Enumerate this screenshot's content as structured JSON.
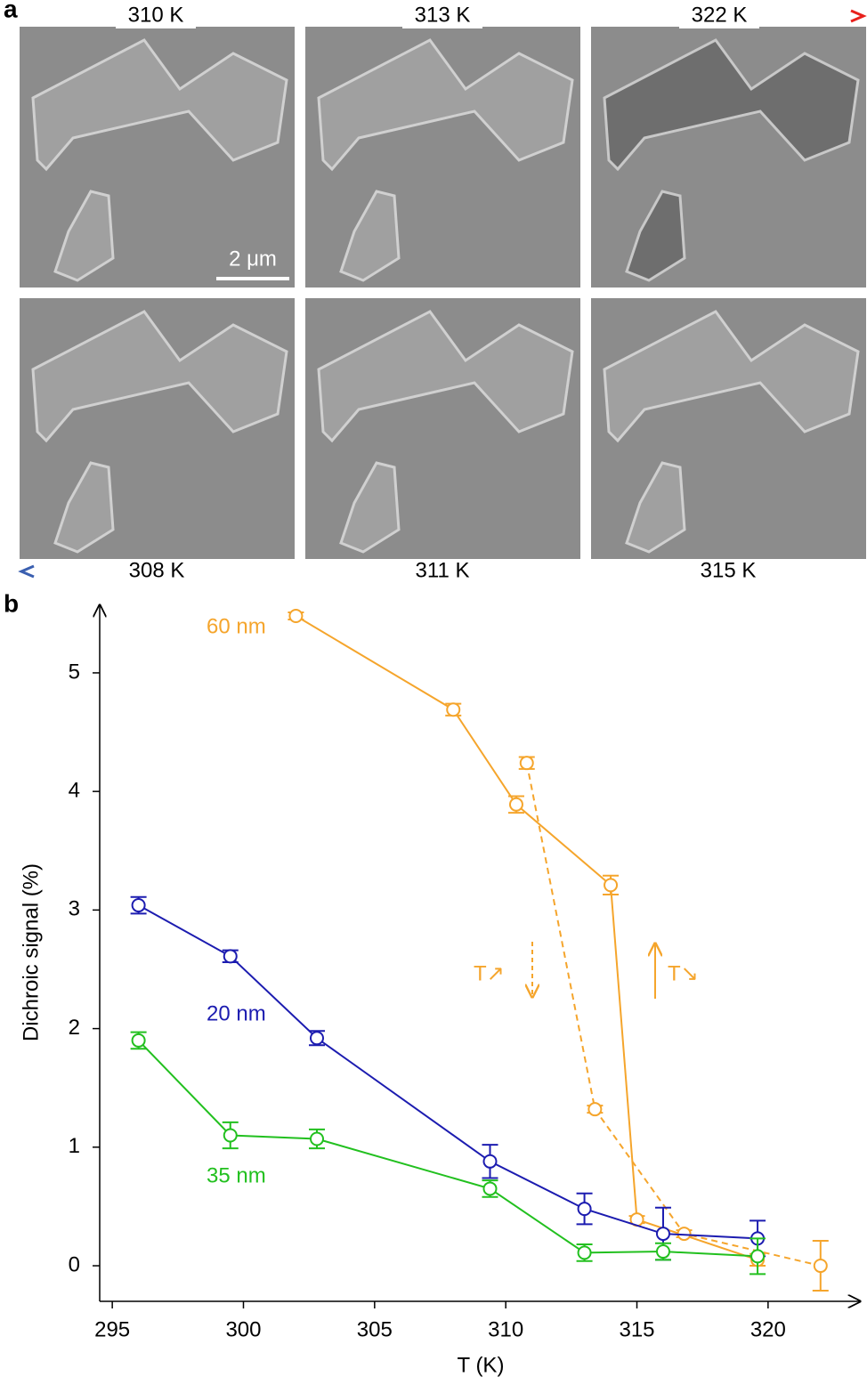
{
  "panel_a": {
    "label": "a",
    "top_temps": [
      "310 K",
      "313 K",
      "322 K"
    ],
    "bottom_temps": [
      "308 K",
      "311 K",
      "315 K"
    ],
    "scale_bar": "2 μm"
  },
  "chart_data": {
    "type": "line",
    "panel_label": "b",
    "x_label": "T (K)",
    "y_label": "Dichroic signal (%)",
    "xlim": [
      294.52,
      323.5
    ],
    "ylim": [
      -0.3,
      5.57
    ],
    "xticks": [
      295,
      300,
      305,
      310,
      315,
      320
    ],
    "yticks": [
      0,
      1,
      2,
      3,
      4,
      5
    ],
    "annotations": [
      "T↗",
      "T↘"
    ],
    "series": [
      {
        "name": "60 nm",
        "color": "#f5a52c",
        "dashed": false,
        "x": [
          302.0,
          308.0,
          310.4,
          314.0,
          315.0,
          319.6
        ],
        "values": [
          5.48,
          4.69,
          3.89,
          3.21,
          0.39,
          0.05
        ],
        "errors": [
          0.03,
          0.05,
          0.07,
          0.08,
          0.03,
          0.05
        ]
      },
      {
        "color": "#f5a52c",
        "dashed": true,
        "x": [
          310.8,
          313.4,
          316.8,
          322.0
        ],
        "values": [
          4.24,
          1.32,
          0.27,
          0.0
        ],
        "errors": [
          0.05,
          0.03,
          0.03,
          0.21
        ]
      },
      {
        "name": "20 nm",
        "color": "#1c1cb0",
        "dashed": false,
        "x": [
          296.0,
          299.5,
          302.8,
          309.4,
          313.0,
          316.0,
          319.6
        ],
        "values": [
          3.04,
          2.61,
          1.92,
          0.88,
          0.48,
          0.27,
          0.23
        ],
        "errors": [
          0.07,
          0.05,
          0.06,
          0.14,
          0.13,
          0.22,
          0.15
        ]
      },
      {
        "name": "35 nm",
        "color": "#22c01f",
        "dashed": false,
        "x": [
          296.0,
          299.5,
          302.8,
          309.4,
          313.0,
          316.0,
          319.6
        ],
        "values": [
          1.9,
          1.1,
          1.07,
          0.65,
          0.11,
          0.12,
          0.08
        ],
        "errors": [
          0.07,
          0.11,
          0.08,
          0.07,
          0.07,
          0.07,
          0.15
        ]
      }
    ]
  }
}
